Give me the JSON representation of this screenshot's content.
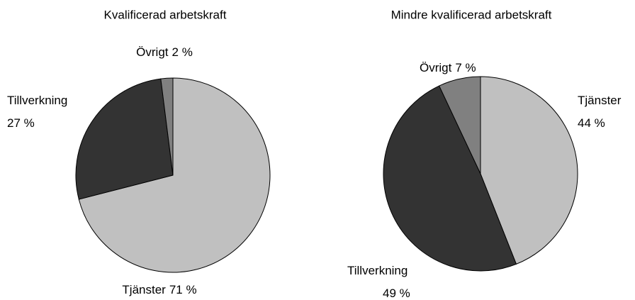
{
  "chart_data": [
    {
      "type": "pie",
      "title": "Kvalificerad arbetskraft",
      "categories": [
        "Tjänster",
        "Tillverkning",
        "Övrigt"
      ],
      "values": [
        71,
        27,
        2
      ],
      "value_labels": [
        "71 %",
        "27 %",
        "2 %"
      ],
      "colors": [
        "#c0c0c0",
        "#333333",
        "#808080"
      ]
    },
    {
      "type": "pie",
      "title": "Mindre kvalificerad arbetskraft",
      "categories": [
        "Tjänster",
        "Tillverkning",
        "Övrigt"
      ],
      "values": [
        44,
        49,
        7
      ],
      "value_labels": [
        "44 %",
        "49 %",
        "7 %"
      ],
      "colors": [
        "#c0c0c0",
        "#333333",
        "#808080"
      ]
    }
  ]
}
